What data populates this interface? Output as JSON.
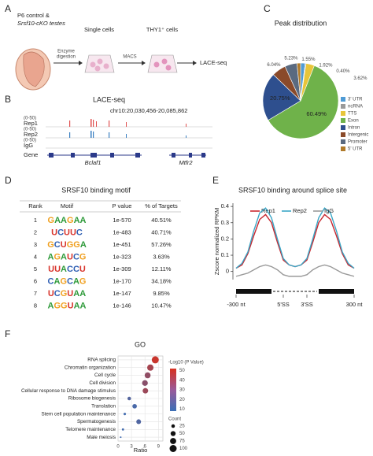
{
  "panel_labels": [
    "A",
    "B",
    "C",
    "D",
    "E",
    "F"
  ],
  "workflow": {
    "source_line1": "P6 control &",
    "source_line2": "Srsf10-cKO testes",
    "arrow1_label": [
      "Enzyme",
      "digestion"
    ],
    "step1": "Single cells",
    "arrow2_label": "MACS",
    "step2": "THY1⁺ cells",
    "step3": "LACE-seq"
  },
  "tracks": {
    "title": "LACE-seq",
    "locus": "chr10:20,030,456-20,085,862",
    "rows": [
      {
        "name": "Rep1",
        "range": "(0-50)"
      },
      {
        "name": "Rep2",
        "range": "(0-50)"
      },
      {
        "name": "IgG",
        "range": "(0-50)"
      }
    ],
    "gene_label": "Gene",
    "genes": [
      "Bclaf1",
      "Mtfr2"
    ]
  },
  "motif_table": {
    "title": "SRSF10 binding motif",
    "headers": [
      "Rank",
      "Motif",
      "P value",
      "% of Targets"
    ],
    "rows": [
      [
        "1",
        "GAAGAA",
        "1e-570",
        "40.51%"
      ],
      [
        "2",
        "UCUUC",
        "1e-483",
        "40.71%"
      ],
      [
        "3",
        "GCUGGA",
        "1e-451",
        "57.26%"
      ],
      [
        "4",
        "AGAUCG",
        "1e-323",
        "3.63%"
      ],
      [
        "5",
        "UUACCU",
        "1e-309",
        "12.11%"
      ],
      [
        "6",
        "CAGCAG",
        "1e-170",
        "34.18%"
      ],
      [
        "7",
        "UCGUAA",
        "1e-147",
        "9.85%"
      ],
      [
        "8",
        "AGGUAA",
        "1e-146",
        "10.47%"
      ]
    ],
    "letter_colors": {
      "A": "#2e9a3a",
      "C": "#2f5fb3",
      "G": "#f0a020",
      "U": "#d8342c"
    }
  },
  "chart_data": [
    {
      "type": "pie",
      "title": "Peak distribution",
      "categories": [
        "3' UTR",
        "ncRNA",
        "TTS",
        "Exon",
        "Intron",
        "Intergenic",
        "Promoter",
        "5' UTR"
      ],
      "values": [
        1.92,
        0.4,
        3.62,
        60.49,
        20.75,
        6.04,
        5.23,
        1.55
      ],
      "value_labels": [
        "1.92%",
        "0.40%",
        "3.62%",
        "60.49%",
        "20.75%",
        "6.04%",
        "5.23%",
        "1.55%"
      ],
      "colors": [
        "#4f9bd5",
        "#9a9a9a",
        "#e8c53a",
        "#6fb24a",
        "#2e4f8e",
        "#8a4a2a",
        "#5a6a80",
        "#b07a2a"
      ],
      "legend": "right"
    },
    {
      "type": "line",
      "title": "SRSF10 binding around splice site",
      "ylabel": "Zscore normalized RPKM",
      "x": [
        0,
        2,
        4,
        6,
        8,
        10,
        12,
        14,
        16,
        18,
        20,
        22,
        24,
        26,
        28,
        30,
        32,
        34,
        36,
        38,
        40
      ],
      "xlim": [
        0,
        40
      ],
      "xticks": [
        {
          "value": 0,
          "label": "-300 nt"
        },
        {
          "value": 16,
          "label": "5'SS"
        },
        {
          "value": 24,
          "label": "3'SS"
        },
        {
          "value": 40,
          "label": "300 nt"
        }
      ],
      "ylim": [
        -0.05,
        0.42
      ],
      "yticks": [
        0,
        0.1,
        0.2,
        0.3,
        0.4
      ],
      "legend": "top",
      "series": [
        {
          "name": "Rep1",
          "color": "#c8262e",
          "values": [
            0.02,
            0.04,
            0.11,
            0.22,
            0.32,
            0.35,
            0.3,
            0.18,
            0.07,
            0.04,
            0.03,
            0.04,
            0.07,
            0.18,
            0.3,
            0.35,
            0.32,
            0.22,
            0.11,
            0.04,
            0.02
          ]
        },
        {
          "name": "Rep2",
          "color": "#3aa6c6",
          "values": [
            0.02,
            0.05,
            0.12,
            0.25,
            0.36,
            0.39,
            0.33,
            0.2,
            0.08,
            0.04,
            0.03,
            0.04,
            0.08,
            0.2,
            0.33,
            0.39,
            0.36,
            0.25,
            0.12,
            0.05,
            0.02
          ]
        },
        {
          "name": "IgG",
          "color": "#999999",
          "values": [
            -0.03,
            -0.02,
            -0.01,
            0.01,
            0.03,
            0.04,
            0.03,
            0.01,
            -0.02,
            -0.03,
            -0.03,
            -0.03,
            -0.02,
            0.01,
            0.03,
            0.04,
            0.03,
            0.01,
            -0.01,
            -0.02,
            -0.03
          ]
        }
      ]
    },
    {
      "type": "dot",
      "title": "GO",
      "xlabel": "Ratio",
      "categories": [
        "RNA splicing",
        "Chromatin organization",
        "Cell cycle",
        "Cell division",
        "Cellular response to DNA damage stimulus",
        "Ribosome biogenesis",
        "Translation",
        "Stem cell population maintenance",
        "Spermatogenesis",
        "Telomere maintenance",
        "Male meiosis"
      ],
      "values": [
        8.3,
        7.2,
        6.6,
        6.0,
        6.1,
        2.5,
        3.7,
        1.5,
        4.6,
        1.1,
        0.6
      ],
      "color_values": [
        48,
        38,
        32,
        30,
        35,
        15,
        12,
        10,
        14,
        10,
        10
      ],
      "sizes": [
        100,
        80,
        70,
        65,
        60,
        25,
        40,
        12,
        45,
        10,
        5
      ],
      "xlim": [
        0,
        10
      ],
      "xticks": [
        0,
        3,
        6,
        9
      ],
      "grid": true,
      "colorbar": {
        "label": "-Log10 (P Value)",
        "clim": [
          8,
          52
        ],
        "ticks": [
          50,
          40,
          30,
          20,
          10
        ],
        "colors": [
          "#d7301f",
          "#3b6fb6"
        ]
      },
      "size_legend": {
        "label": "Count",
        "values": [
          25,
          50,
          75,
          100
        ]
      }
    }
  ]
}
